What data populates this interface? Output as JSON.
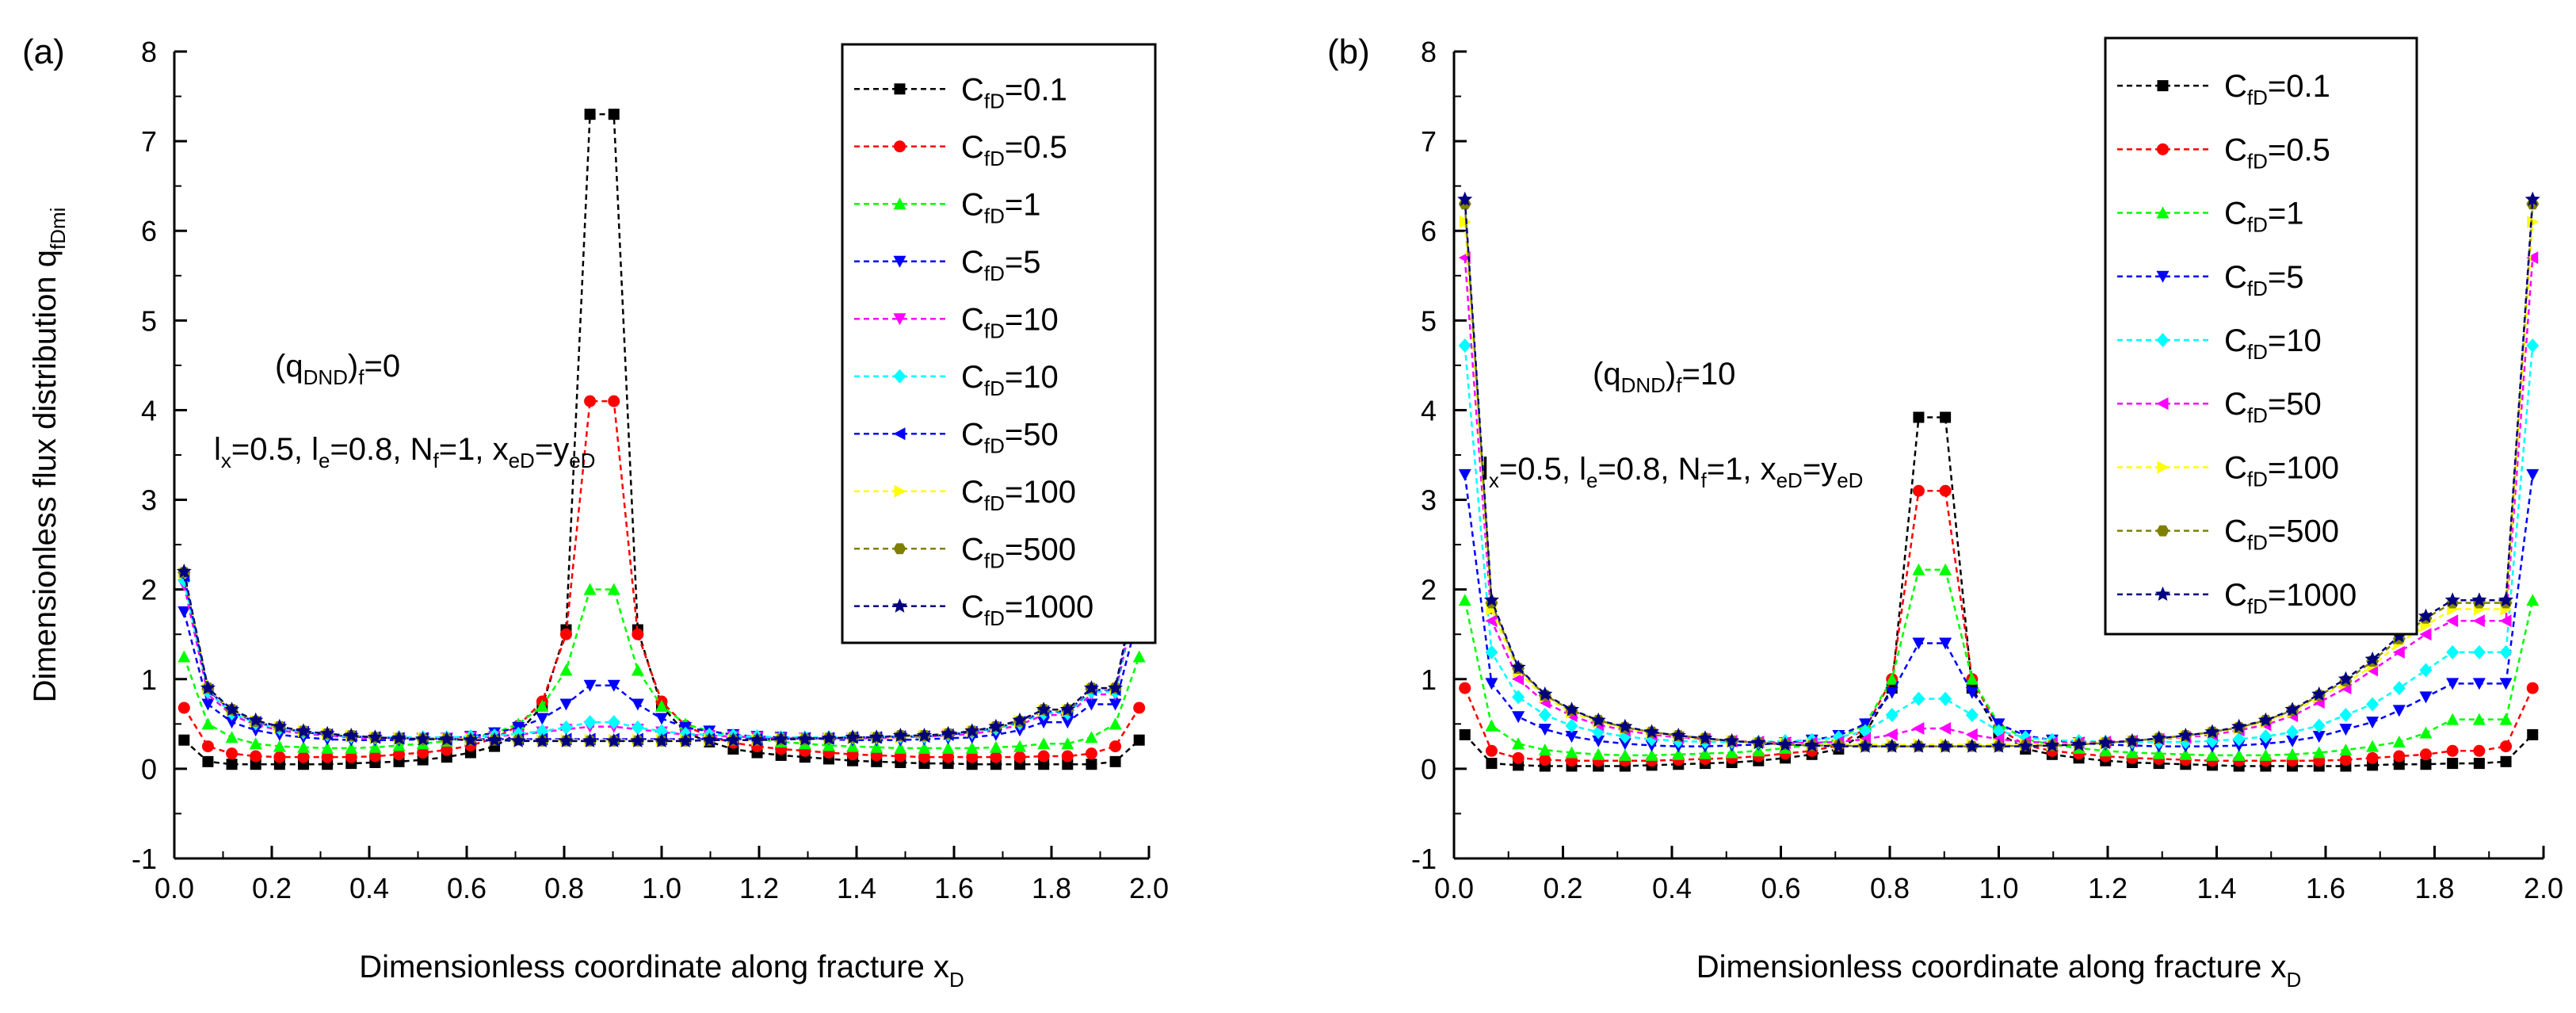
{
  "chart_data": [
    {
      "type": "line",
      "panel": "(a)",
      "xlabel": "Dimensionless coordinate along fracture x",
      "xlabel_sub": "D",
      "ylabel": "Dimensionless flux distribution q",
      "ylabel_sub": "fDmi",
      "xlim": [
        0.0,
        2.0
      ],
      "ylim": [
        -1,
        8
      ],
      "x_ticks": [
        "0.0",
        "0.2",
        "0.4",
        "0.6",
        "0.8",
        "1.0",
        "1.2",
        "1.4",
        "1.6",
        "1.8",
        "2.0"
      ],
      "y_ticks": [
        "-1",
        "0",
        "1",
        "2",
        "3",
        "4",
        "5",
        "6",
        "7",
        "8"
      ],
      "annotations": {
        "line1": {
          "main": "(q",
          "sub": "DND",
          "post": ")",
          "sub2": "f",
          "tail": "=0"
        },
        "line2": {
          "p1": "l",
          "s1": "x",
          "t1": "=0.5, l",
          "s2": "e",
          "t2": "=0.8, N",
          "s3": "f",
          "t3": "=1, x",
          "s4": "eD",
          "t4": "=y",
          "s5": "eD",
          "t5": ""
        }
      },
      "series": [
        {
          "name": "C",
          "sub": "fD",
          "label": "=0.1",
          "color": "#000000",
          "marker": "square",
          "values": [
            0.32,
            0.08,
            0.05,
            0.05,
            0.05,
            0.05,
            0.05,
            0.06,
            0.07,
            0.08,
            0.1,
            0.13,
            0.18,
            0.25,
            0.4,
            0.7,
            1.55,
            7.3,
            7.3,
            1.55,
            0.7,
            0.4,
            0.3,
            0.22,
            0.18,
            0.15,
            0.13,
            0.11,
            0.09,
            0.08,
            0.07,
            0.06,
            0.06,
            0.05,
            0.05,
            0.05,
            0.05,
            0.05,
            0.05,
            0.08,
            0.32
          ]
        },
        {
          "name": "C",
          "sub": "fD",
          "label": "=0.5",
          "color": "#ff0000",
          "marker": "circle",
          "values": [
            0.68,
            0.25,
            0.17,
            0.14,
            0.13,
            0.13,
            0.13,
            0.13,
            0.14,
            0.16,
            0.18,
            0.21,
            0.26,
            0.34,
            0.48,
            0.75,
            1.5,
            4.1,
            4.1,
            1.5,
            0.75,
            0.48,
            0.36,
            0.29,
            0.25,
            0.22,
            0.2,
            0.18,
            0.16,
            0.15,
            0.14,
            0.13,
            0.13,
            0.13,
            0.13,
            0.13,
            0.14,
            0.14,
            0.17,
            0.25,
            0.68
          ]
        },
        {
          "name": "C",
          "sub": "fD",
          "label": "=1",
          "color": "#00ff00",
          "marker": "triangle-up",
          "values": [
            1.25,
            0.5,
            0.35,
            0.28,
            0.25,
            0.24,
            0.23,
            0.23,
            0.24,
            0.26,
            0.28,
            0.31,
            0.35,
            0.4,
            0.5,
            0.7,
            1.1,
            2.0,
            2.0,
            1.1,
            0.7,
            0.5,
            0.42,
            0.37,
            0.33,
            0.3,
            0.28,
            0.26,
            0.25,
            0.24,
            0.23,
            0.23,
            0.23,
            0.23,
            0.24,
            0.25,
            0.28,
            0.28,
            0.35,
            0.5,
            1.25
          ]
        },
        {
          "name": "C",
          "sub": "fD",
          "label": "=5",
          "color": "#0000ff",
          "marker": "triangle-down",
          "values": [
            1.75,
            0.72,
            0.52,
            0.43,
            0.38,
            0.35,
            0.33,
            0.32,
            0.32,
            0.32,
            0.33,
            0.34,
            0.36,
            0.4,
            0.46,
            0.56,
            0.72,
            0.93,
            0.93,
            0.72,
            0.56,
            0.46,
            0.42,
            0.38,
            0.36,
            0.35,
            0.34,
            0.33,
            0.32,
            0.32,
            0.32,
            0.33,
            0.34,
            0.35,
            0.38,
            0.43,
            0.52,
            0.52,
            0.72,
            0.72,
            1.75
          ]
        },
        {
          "name": "C",
          "sub": "fD",
          "label": "=10",
          "color": "#ff00ff",
          "marker": "triangle-down",
          "values": [
            2.05,
            0.83,
            0.6,
            0.49,
            0.43,
            0.39,
            0.37,
            0.35,
            0.34,
            0.34,
            0.34,
            0.34,
            0.35,
            0.36,
            0.38,
            0.41,
            0.44,
            0.47,
            0.47,
            0.44,
            0.41,
            0.38,
            0.37,
            0.36,
            0.35,
            0.34,
            0.34,
            0.34,
            0.34,
            0.34,
            0.35,
            0.36,
            0.37,
            0.39,
            0.43,
            0.49,
            0.6,
            0.6,
            0.83,
            0.83,
            2.05
          ]
        },
        {
          "name": "C",
          "sub": "fD",
          "label": "=10",
          "color": "#00ffff",
          "marker": "diamond",
          "values": [
            2.1,
            0.86,
            0.62,
            0.51,
            0.45,
            0.41,
            0.38,
            0.36,
            0.35,
            0.35,
            0.35,
            0.35,
            0.36,
            0.37,
            0.39,
            0.42,
            0.46,
            0.52,
            0.52,
            0.46,
            0.42,
            0.39,
            0.38,
            0.37,
            0.36,
            0.35,
            0.35,
            0.35,
            0.35,
            0.35,
            0.36,
            0.36,
            0.38,
            0.41,
            0.45,
            0.51,
            0.62,
            0.62,
            0.86,
            0.86,
            2.1
          ]
        },
        {
          "name": "C",
          "sub": "fD",
          "label": "=50",
          "color": "#0000ff",
          "marker": "triangle-left",
          "values": [
            2.15,
            0.88,
            0.64,
            0.52,
            0.46,
            0.41,
            0.38,
            0.36,
            0.35,
            0.34,
            0.34,
            0.33,
            0.33,
            0.33,
            0.33,
            0.33,
            0.33,
            0.33,
            0.33,
            0.33,
            0.33,
            0.33,
            0.33,
            0.33,
            0.33,
            0.33,
            0.34,
            0.34,
            0.35,
            0.35,
            0.36,
            0.36,
            0.38,
            0.41,
            0.46,
            0.52,
            0.64,
            0.64,
            0.88,
            0.88,
            2.15
          ]
        },
        {
          "name": "C",
          "sub": "fD",
          "label": "=100",
          "color": "#ffff00",
          "marker": "triangle-right",
          "values": [
            2.18,
            0.89,
            0.65,
            0.53,
            0.46,
            0.42,
            0.39,
            0.37,
            0.35,
            0.34,
            0.34,
            0.33,
            0.33,
            0.32,
            0.32,
            0.32,
            0.32,
            0.32,
            0.32,
            0.32,
            0.32,
            0.32,
            0.32,
            0.32,
            0.32,
            0.33,
            0.33,
            0.34,
            0.34,
            0.35,
            0.35,
            0.37,
            0.39,
            0.42,
            0.46,
            0.53,
            0.65,
            0.65,
            0.89,
            0.89,
            2.18
          ]
        },
        {
          "name": "C",
          "sub": "fD",
          "label": "=500",
          "color": "#808000",
          "marker": "hexagon",
          "values": [
            2.19,
            0.9,
            0.66,
            0.53,
            0.47,
            0.42,
            0.39,
            0.37,
            0.35,
            0.34,
            0.33,
            0.33,
            0.32,
            0.32,
            0.32,
            0.31,
            0.31,
            0.31,
            0.31,
            0.31,
            0.31,
            0.31,
            0.32,
            0.32,
            0.32,
            0.33,
            0.33,
            0.34,
            0.35,
            0.35,
            0.37,
            0.37,
            0.39,
            0.42,
            0.47,
            0.53,
            0.66,
            0.66,
            0.9,
            0.9,
            2.19
          ]
        },
        {
          "name": "C",
          "sub": "fD",
          "label": "=1000",
          "color": "#000080",
          "marker": "star",
          "values": [
            2.2,
            0.9,
            0.66,
            0.54,
            0.47,
            0.42,
            0.39,
            0.37,
            0.35,
            0.34,
            0.33,
            0.33,
            0.32,
            0.32,
            0.31,
            0.31,
            0.31,
            0.31,
            0.31,
            0.31,
            0.31,
            0.31,
            0.32,
            0.32,
            0.32,
            0.33,
            0.33,
            0.34,
            0.35,
            0.35,
            0.37,
            0.37,
            0.39,
            0.42,
            0.47,
            0.54,
            0.66,
            0.66,
            0.9,
            0.9,
            2.2
          ]
        }
      ]
    },
    {
      "type": "line",
      "panel": "(b)",
      "xlabel": "Dimensionless coordinate along fracture x",
      "xlabel_sub": "D",
      "ylabel": "",
      "ylabel_sub": "",
      "xlim": [
        0.0,
        2.0
      ],
      "ylim": [
        -1,
        8
      ],
      "x_ticks": [
        "0.0",
        "0.2",
        "0.4",
        "0.6",
        "0.8",
        "1.0",
        "1.2",
        "1.4",
        "1.6",
        "1.8",
        "2.0"
      ],
      "y_ticks": [
        "-1",
        "0",
        "1",
        "2",
        "3",
        "4",
        "5",
        "6",
        "7",
        "8"
      ],
      "annotations": {
        "line1": {
          "main": "(q",
          "sub": "DND",
          "post": ")",
          "sub2": "f",
          "tail": "=10"
        },
        "line2": {
          "p1": "l",
          "s1": "x",
          "t1": "=0.5, l",
          "s2": "e",
          "t2": "=0.8, N",
          "s3": "f",
          "t3": "=1, x",
          "s4": "eD",
          "t4": "=y",
          "s5": "eD",
          "t5": ""
        }
      },
      "series": [
        {
          "name": "C",
          "sub": "fD",
          "label": "=0.1",
          "color": "#000000",
          "marker": "square",
          "values": [
            0.38,
            0.06,
            0.04,
            0.03,
            0.03,
            0.03,
            0.03,
            0.04,
            0.05,
            0.06,
            0.07,
            0.09,
            0.12,
            0.16,
            0.22,
            0.4,
            0.9,
            3.92,
            3.92,
            0.9,
            0.4,
            0.22,
            0.16,
            0.12,
            0.09,
            0.07,
            0.06,
            0.05,
            0.04,
            0.03,
            0.03,
            0.03,
            0.03,
            0.03,
            0.04,
            0.05,
            0.05,
            0.06,
            0.06,
            0.08,
            0.38
          ]
        },
        {
          "name": "C",
          "sub": "fD",
          "label": "=0.5",
          "color": "#ff0000",
          "marker": "circle",
          "values": [
            0.9,
            0.2,
            0.12,
            0.1,
            0.09,
            0.09,
            0.09,
            0.09,
            0.1,
            0.11,
            0.12,
            0.14,
            0.17,
            0.2,
            0.26,
            0.45,
            1.0,
            3.1,
            3.1,
            1.0,
            0.45,
            0.26,
            0.2,
            0.17,
            0.14,
            0.12,
            0.11,
            0.1,
            0.09,
            0.09,
            0.09,
            0.09,
            0.09,
            0.1,
            0.12,
            0.14,
            0.16,
            0.2,
            0.2,
            0.25,
            0.9
          ]
        },
        {
          "name": "C",
          "sub": "fD",
          "label": "=1",
          "color": "#00ff00",
          "marker": "triangle-up",
          "values": [
            1.88,
            0.48,
            0.28,
            0.21,
            0.18,
            0.16,
            0.15,
            0.15,
            0.16,
            0.17,
            0.18,
            0.2,
            0.23,
            0.27,
            0.33,
            0.5,
            1.0,
            2.22,
            2.22,
            1.0,
            0.5,
            0.33,
            0.27,
            0.23,
            0.2,
            0.18,
            0.17,
            0.16,
            0.15,
            0.15,
            0.15,
            0.16,
            0.18,
            0.21,
            0.25,
            0.3,
            0.4,
            0.55,
            0.55,
            0.55,
            1.88
          ]
        },
        {
          "name": "C",
          "sub": "fD",
          "label": "=5",
          "color": "#0000ff",
          "marker": "triangle-down",
          "values": [
            3.28,
            0.95,
            0.58,
            0.44,
            0.36,
            0.31,
            0.28,
            0.26,
            0.25,
            0.25,
            0.26,
            0.27,
            0.29,
            0.32,
            0.37,
            0.5,
            0.85,
            1.4,
            1.4,
            0.85,
            0.5,
            0.37,
            0.32,
            0.29,
            0.27,
            0.26,
            0.25,
            0.25,
            0.25,
            0.26,
            0.28,
            0.31,
            0.36,
            0.44,
            0.52,
            0.65,
            0.8,
            0.95,
            0.95,
            0.95,
            3.28
          ]
        },
        {
          "name": "C",
          "sub": "fD",
          "label": "=10",
          "color": "#00ffff",
          "marker": "diamond",
          "values": [
            4.72,
            1.3,
            0.8,
            0.6,
            0.48,
            0.41,
            0.36,
            0.33,
            0.31,
            0.3,
            0.3,
            0.3,
            0.31,
            0.32,
            0.35,
            0.42,
            0.6,
            0.78,
            0.78,
            0.6,
            0.42,
            0.35,
            0.32,
            0.31,
            0.3,
            0.3,
            0.3,
            0.3,
            0.31,
            0.33,
            0.36,
            0.41,
            0.48,
            0.6,
            0.72,
            0.9,
            1.1,
            1.3,
            1.3,
            1.3,
            4.72
          ]
        },
        {
          "name": "C",
          "sub": "fD",
          "label": "=50",
          "color": "#ff00ff",
          "marker": "triangle-left",
          "values": [
            5.7,
            1.65,
            1.0,
            0.74,
            0.59,
            0.49,
            0.43,
            0.38,
            0.35,
            0.33,
            0.31,
            0.3,
            0.29,
            0.29,
            0.3,
            0.33,
            0.38,
            0.45,
            0.45,
            0.38,
            0.33,
            0.3,
            0.29,
            0.29,
            0.3,
            0.31,
            0.33,
            0.35,
            0.38,
            0.43,
            0.49,
            0.59,
            0.74,
            0.9,
            1.1,
            1.3,
            1.5,
            1.65,
            1.65,
            1.65,
            5.7
          ]
        },
        {
          "name": "C",
          "sub": "fD",
          "label": "=100",
          "color": "#ffff00",
          "marker": "triangle-right",
          "values": [
            6.1,
            1.78,
            1.08,
            0.8,
            0.63,
            0.52,
            0.45,
            0.4,
            0.36,
            0.33,
            0.31,
            0.29,
            0.28,
            0.27,
            0.27,
            0.27,
            0.27,
            0.27,
            0.27,
            0.27,
            0.27,
            0.27,
            0.27,
            0.28,
            0.29,
            0.31,
            0.33,
            0.36,
            0.4,
            0.45,
            0.52,
            0.63,
            0.8,
            0.95,
            1.15,
            1.4,
            1.6,
            1.78,
            1.78,
            1.78,
            6.1
          ]
        },
        {
          "name": "C",
          "sub": "fD",
          "label": "=500",
          "color": "#808000",
          "marker": "hexagon",
          "values": [
            6.3,
            1.85,
            1.12,
            0.82,
            0.65,
            0.54,
            0.46,
            0.41,
            0.37,
            0.34,
            0.31,
            0.29,
            0.27,
            0.26,
            0.26,
            0.25,
            0.25,
            0.25,
            0.25,
            0.25,
            0.25,
            0.26,
            0.26,
            0.27,
            0.29,
            0.31,
            0.34,
            0.37,
            0.41,
            0.46,
            0.54,
            0.65,
            0.82,
            0.98,
            1.2,
            1.45,
            1.68,
            1.85,
            1.85,
            1.85,
            6.3
          ]
        },
        {
          "name": "C",
          "sub": "fD",
          "label": "=1000",
          "color": "#000080",
          "marker": "star",
          "values": [
            6.35,
            1.88,
            1.13,
            0.83,
            0.66,
            0.54,
            0.47,
            0.41,
            0.37,
            0.34,
            0.31,
            0.29,
            0.27,
            0.26,
            0.25,
            0.25,
            0.25,
            0.25,
            0.25,
            0.25,
            0.25,
            0.25,
            0.26,
            0.27,
            0.29,
            0.31,
            0.34,
            0.37,
            0.41,
            0.47,
            0.54,
            0.66,
            0.83,
            1.0,
            1.22,
            1.48,
            1.7,
            1.88,
            1.88,
            1.88,
            6.35
          ]
        }
      ]
    }
  ]
}
